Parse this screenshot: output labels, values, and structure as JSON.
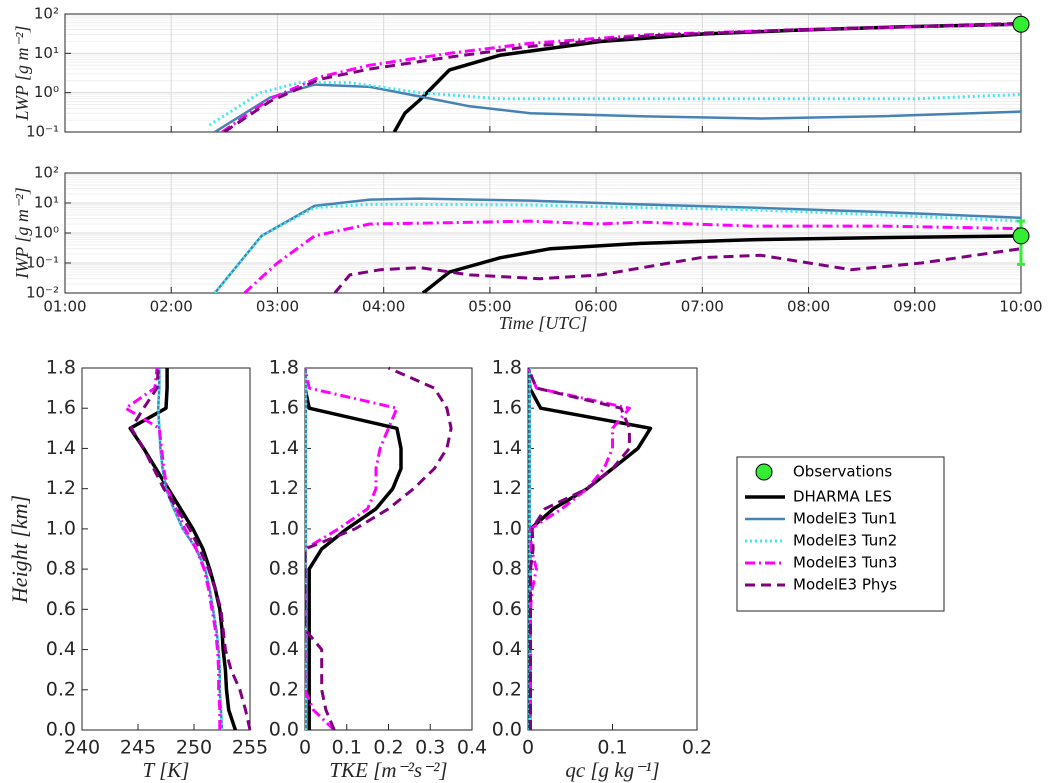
{
  "chart_data": [
    {
      "type": "line",
      "yscale": "log",
      "ylabel": "LWP [g m⁻²]",
      "grid": true,
      "legend": "east",
      "xlim": [
        1,
        10
      ],
      "xticks": [
        1,
        2,
        3,
        4,
        5,
        6,
        7,
        8,
        9,
        10
      ],
      "ylim": [
        0.1,
        100
      ],
      "yticks": [
        {
          "value": 0.1,
          "label": "10⁻¹"
        },
        {
          "value": 1,
          "label": "10⁰"
        },
        {
          "value": 10,
          "label": "10¹"
        },
        {
          "value": 100,
          "label": "10²"
        }
      ],
      "series": [
        {
          "name": "Observations",
          "color": "#33ee33",
          "style": "marker",
          "x": [
            10
          ],
          "values": [
            55
          ]
        },
        {
          "name": "DHARMA LES",
          "color": "#000000",
          "style": "solid",
          "x": [
            4.1,
            4.2,
            4.34,
            4.62,
            5.1,
            6.04,
            7.0,
            7.9,
            8.86,
            10
          ],
          "values": [
            0.1,
            0.3,
            0.65,
            3.8,
            9,
            20,
            31,
            39,
            47,
            55
          ]
        },
        {
          "name": "ModelE3 Tun1",
          "color": "#4682b4",
          "style": "solid-thin",
          "x": [
            2.41,
            2.93,
            3.35,
            3.87,
            4.34,
            4.81,
            5.38,
            6.42,
            7.55,
            8.68,
            10
          ],
          "values": [
            0.1,
            0.75,
            1.6,
            1.4,
            0.8,
            0.45,
            0.3,
            0.25,
            0.22,
            0.25,
            0.33
          ]
        },
        {
          "name": "ModelE3 Tun2",
          "color": "#40e8f0",
          "style": "dotted",
          "x": [
            2.36,
            2.84,
            3.21,
            3.68,
            4.34,
            5.1,
            7,
            9,
            10
          ],
          "values": [
            0.15,
            1,
            1.8,
            1.8,
            1,
            0.7,
            0.7,
            0.7,
            0.9
          ]
        },
        {
          "name": "ModelE3 Tun3",
          "color": "#ff00ff",
          "style": "dashdot",
          "x": [
            2.48,
            2.93,
            3.4,
            3.87,
            4.62,
            5.38,
            6.51,
            7.9,
            10
          ],
          "values": [
            0.1,
            0.7,
            2.5,
            5,
            10,
            18,
            30,
            40,
            55
          ]
        },
        {
          "name": "ModelE3 Phys",
          "color": "#800080",
          "style": "dashed",
          "x": [
            2.5,
            2.93,
            3.4,
            3.87,
            4.62,
            5.38,
            6.51,
            7.9,
            10
          ],
          "values": [
            0.1,
            0.6,
            2.2,
            4,
            8,
            15,
            28,
            40,
            58
          ]
        }
      ]
    },
    {
      "type": "line",
      "yscale": "log",
      "ylabel": "IWP [g m⁻²]",
      "xlabel": "Time [UTC]",
      "grid": true,
      "xlim": [
        1,
        10
      ],
      "xticks": [
        {
          "value": 1,
          "label": "01:00"
        },
        {
          "value": 2,
          "label": "02:00"
        },
        {
          "value": 3,
          "label": "03:00"
        },
        {
          "value": 4,
          "label": "04:00"
        },
        {
          "value": 5,
          "label": "05:00"
        },
        {
          "value": 6,
          "label": "06:00"
        },
        {
          "value": 7,
          "label": "07:00"
        },
        {
          "value": 8,
          "label": "08:00"
        },
        {
          "value": 9,
          "label": "09:00"
        },
        {
          "value": 10,
          "label": "10:00"
        }
      ],
      "ylim": [
        0.01,
        100
      ],
      "yticks": [
        {
          "value": 0.01,
          "label": "10⁻²"
        },
        {
          "value": 0.1,
          "label": "10⁻¹"
        },
        {
          "value": 1,
          "label": "10⁰"
        },
        {
          "value": 10,
          "label": "10¹"
        },
        {
          "value": 100,
          "label": "10²"
        }
      ],
      "series": [
        {
          "name": "Observations",
          "color": "#33ee33",
          "style": "marker",
          "x": [
            10
          ],
          "values": [
            0.8
          ],
          "lower": [
            0.09
          ],
          "upper": [
            2.5
          ]
        },
        {
          "name": "DHARMA LES",
          "color": "#000000",
          "style": "solid",
          "x": [
            4.37,
            4.62,
            5.1,
            5.57,
            6.42,
            7.46,
            8.68,
            10
          ],
          "values": [
            0.01,
            0.05,
            0.15,
            0.3,
            0.45,
            0.6,
            0.7,
            0.8
          ]
        },
        {
          "name": "ModelE3 Tun1",
          "color": "#4682b4",
          "style": "solid-thin",
          "x": [
            2.41,
            2.85,
            3.35,
            3.87,
            4.34,
            5.38,
            6.42,
            7.46,
            8.68,
            10
          ],
          "values": [
            0.01,
            0.8,
            8,
            13,
            14,
            12,
            9,
            7,
            5,
            3.2
          ]
        },
        {
          "name": "ModelE3 Tun2",
          "color": "#40e8f0",
          "style": "dotted",
          "x": [
            2.41,
            2.85,
            3.35,
            3.87,
            4.34,
            5.38,
            6.42,
            7.46,
            8.68,
            10
          ],
          "values": [
            0.01,
            0.8,
            7,
            9,
            9,
            8.5,
            7,
            6,
            4,
            2.5
          ]
        },
        {
          "name": "ModelE3 Tun3",
          "color": "#ff00ff",
          "style": "dashdot",
          "x": [
            2.69,
            3.0,
            3.35,
            3.87,
            4.62,
            5.38,
            6.04,
            6.42,
            7.46,
            8.68,
            10
          ],
          "values": [
            0.01,
            0.1,
            0.8,
            2,
            2.2,
            2.5,
            2,
            2.3,
            1.7,
            1.7,
            1.4
          ]
        },
        {
          "name": "ModelE3 Phys",
          "color": "#800080",
          "style": "dashed",
          "x": [
            3.54,
            3.68,
            3.97,
            4.34,
            4.81,
            5.47,
            6.04,
            6.98,
            7.55,
            8.4,
            9.06,
            10
          ],
          "values": [
            0.01,
            0.04,
            0.06,
            0.07,
            0.04,
            0.03,
            0.04,
            0.15,
            0.18,
            0.06,
            0.1,
            0.3
          ]
        }
      ]
    },
    {
      "type": "profile",
      "xlabel": "T [K]",
      "ylabel": "Height [km]",
      "xlim": [
        240,
        255
      ],
      "xticks": [
        240,
        245,
        250,
        255
      ],
      "ylim": [
        0,
        1.8
      ],
      "yticks": [
        {
          "value": 0,
          "label": "0.0"
        },
        0.2,
        0.4,
        0.6,
        0.8,
        {
          "value": 1,
          "label": "1.0"
        },
        1.2,
        1.4,
        1.6,
        1.8
      ],
      "y": [
        0,
        0.1,
        0.2,
        0.3,
        0.4,
        0.5,
        0.6,
        0.7,
        0.8,
        0.9,
        1.0,
        1.1,
        1.2,
        1.3,
        1.4,
        1.5,
        1.6,
        1.7,
        1.8
      ],
      "series": [
        {
          "name": "DHARMA LES",
          "color": "#000000",
          "style": "solid",
          "values": [
            253.7,
            253.1,
            252.9,
            252.8,
            252.6,
            252.5,
            252.3,
            251.9,
            251.4,
            250.8,
            249.9,
            248.8,
            247.7,
            246.6,
            245.5,
            244.3,
            247.5,
            247.6,
            247.6
          ]
        },
        {
          "name": "ModelE3 Tun1",
          "color": "#4682b4",
          "style": "solid-thin",
          "values": [
            252.5,
            252.4,
            252.3,
            252.3,
            252.2,
            252.0,
            251.7,
            251.4,
            251.0,
            250.2,
            249.0,
            248.2,
            247.5,
            247.2,
            247.0,
            246.9,
            246.8,
            246.9,
            246.9
          ]
        },
        {
          "name": "ModelE3 Tun2",
          "color": "#40e8f0",
          "style": "dotted",
          "values": [
            252.5,
            252.4,
            252.3,
            252.3,
            252.2,
            252.0,
            251.7,
            251.4,
            251.0,
            250.2,
            249.0,
            248.2,
            247.5,
            247.2,
            247.0,
            246.9,
            246.8,
            246.9,
            246.9
          ]
        },
        {
          "name": "ModelE3 Tun3",
          "color": "#ff00ff",
          "style": "dashdot",
          "values": [
            252.3,
            252.3,
            252.2,
            252.2,
            252.1,
            251.9,
            251.6,
            251.3,
            250.9,
            250.2,
            249.2,
            248.4,
            247.6,
            247.3,
            247.1,
            246.9,
            243.9,
            246.5,
            246.7
          ]
        },
        {
          "name": "ModelE3 Phys",
          "color": "#800080",
          "style": "dashed",
          "values": [
            255,
            254.6,
            254.1,
            253.3,
            252.8,
            252.6,
            252.4,
            251.9,
            251.3,
            250.5,
            249.6,
            248.5,
            247.3,
            246.4,
            245.5,
            244.4,
            245.5,
            246.7,
            246.8
          ]
        }
      ]
    },
    {
      "type": "profile",
      "xlabel": "TKE [m⁻²s⁻²]",
      "xlim": [
        0,
        0.4
      ],
      "xticks": [
        0,
        0.1,
        0.2,
        0.3,
        0.4
      ],
      "ylim": [
        0,
        1.8
      ],
      "yticks": [
        {
          "value": 0,
          "label": "0.0"
        },
        0.2,
        0.4,
        0.6,
        0.8,
        {
          "value": 1,
          "label": "1.0"
        },
        1.2,
        1.4,
        1.6,
        1.8
      ],
      "y": [
        0,
        0.1,
        0.2,
        0.3,
        0.4,
        0.5,
        0.6,
        0.7,
        0.8,
        0.9,
        1.0,
        1.1,
        1.2,
        1.3,
        1.4,
        1.5,
        1.6,
        1.7,
        1.8
      ],
      "series": [
        {
          "name": "DHARMA LES",
          "color": "#000000",
          "style": "solid",
          "values": [
            0.01,
            0.01,
            0.01,
            0.01,
            0.01,
            0.01,
            0.01,
            0.01,
            0.01,
            0.04,
            0.1,
            0.17,
            0.21,
            0.23,
            0.23,
            0.22,
            0.01,
            0,
            0
          ]
        },
        {
          "name": "ModelE3 Tun1",
          "color": "#4682b4",
          "style": "solid-thin",
          "values": [
            0.002,
            0.002,
            0.002,
            0.002,
            0.002,
            0.002,
            0.002,
            0.002,
            0.002,
            0.002,
            0.002,
            0.002,
            0.002,
            0.002,
            0.002,
            0.002,
            0.002,
            0.002,
            0.002
          ]
        },
        {
          "name": "ModelE3 Tun2",
          "color": "#40e8f0",
          "style": "dotted",
          "values": [
            0.002,
            0.002,
            0.002,
            0.002,
            0.002,
            0.002,
            0.002,
            0.002,
            0.002,
            0.002,
            0.002,
            0.002,
            0.002,
            0.002,
            0.002,
            0.002,
            0.002,
            0.002,
            0.002
          ]
        },
        {
          "name": "ModelE3 Tun3",
          "color": "#ff00ff",
          "style": "dashdot",
          "values": [
            0.07,
            0.02,
            0,
            0,
            0,
            0,
            0,
            0,
            0,
            0,
            0.08,
            0.15,
            0.17,
            0.17,
            0.18,
            0.2,
            0.22,
            0.01,
            0
          ]
        },
        {
          "name": "ModelE3 Phys",
          "color": "#800080",
          "style": "dashed",
          "values": [
            0.07,
            0.05,
            0.04,
            0.04,
            0.04,
            0,
            0,
            0,
            0,
            0,
            0.12,
            0.2,
            0.26,
            0.31,
            0.34,
            0.35,
            0.34,
            0.31,
            0.2
          ]
        }
      ]
    },
    {
      "type": "profile",
      "xlabel": "qc [g kg⁻¹]",
      "xlim": [
        0,
        0.2
      ],
      "xticks": [
        0,
        0.1,
        0.2
      ],
      "ylim": [
        0,
        1.8
      ],
      "yticks": [
        {
          "value": 0,
          "label": "0.0"
        },
        0.2,
        0.4,
        0.6,
        0.8,
        {
          "value": 1,
          "label": "1.0"
        },
        1.2,
        1.4,
        1.6,
        1.8
      ],
      "y": [
        0,
        0.1,
        0.2,
        0.3,
        0.4,
        0.5,
        0.6,
        0.7,
        0.8,
        0.9,
        1.0,
        1.1,
        1.2,
        1.3,
        1.4,
        1.5,
        1.6,
        1.7,
        1.8
      ],
      "series": [
        {
          "name": "DHARMA LES",
          "color": "#000000",
          "style": "solid",
          "values": [
            0.002,
            0.002,
            0.002,
            0.002,
            0.002,
            0.002,
            0.002,
            0.002,
            0.002,
            0.002,
            0.003,
            0.03,
            0.07,
            0.1,
            0.13,
            0.145,
            0.015,
            0.002,
            0.001
          ]
        },
        {
          "name": "ModelE3 Tun1",
          "color": "#4682b4",
          "style": "solid-thin",
          "values": [
            0.002,
            0.002,
            0.002,
            0.002,
            0.002,
            0.002,
            0.002,
            0.002,
            0.002,
            0.002,
            0.002,
            0.002,
            0.002,
            0.002,
            0.002,
            0.002,
            0.002,
            0.002,
            0.002
          ]
        },
        {
          "name": "ModelE3 Tun2",
          "color": "#40e8f0",
          "style": "dotted",
          "values": [
            0.002,
            0.002,
            0.002,
            0.002,
            0.002,
            0.002,
            0.002,
            0.002,
            0.002,
            0.002,
            0.002,
            0.002,
            0.002,
            0.002,
            0.002,
            0.002,
            0.002,
            0.002,
            0.002
          ]
        },
        {
          "name": "ModelE3 Tun3",
          "color": "#ff00ff",
          "style": "dashdot",
          "values": [
            0.003,
            0.003,
            0.003,
            0.003,
            0.003,
            0.003,
            0.003,
            0.005,
            0.01,
            0.004,
            0.003,
            0.04,
            0.07,
            0.09,
            0.1,
            0.1,
            0.12,
            0.01,
            0
          ]
        },
        {
          "name": "ModelE3 Phys",
          "color": "#800080",
          "style": "dashed",
          "values": [
            0.003,
            0.003,
            0.003,
            0.003,
            0.003,
            0.003,
            0.003,
            0.003,
            0.003,
            0.006,
            0.005,
            0.02,
            0.07,
            0.1,
            0.12,
            0.12,
            0.11,
            0.01,
            0
          ]
        }
      ]
    }
  ]
}
